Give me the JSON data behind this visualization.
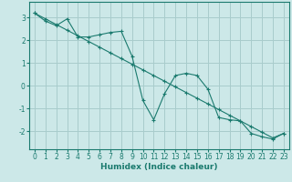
{
  "xlabel": "Humidex (Indice chaleur)",
  "bg_color": "#cce8e8",
  "line_color": "#1a7a6e",
  "grid_color": "#a8cccc",
  "line1_x": [
    0,
    1,
    2,
    3,
    4,
    5,
    6,
    7,
    8,
    9,
    10,
    11,
    12,
    13,
    14,
    15,
    16,
    17,
    18,
    19,
    20,
    21,
    22,
    23
  ],
  "line1_y": [
    3.2,
    2.85,
    2.65,
    2.95,
    2.15,
    2.15,
    2.25,
    2.35,
    2.4,
    1.3,
    -0.65,
    -1.5,
    -0.35,
    0.45,
    0.55,
    0.45,
    -0.15,
    -1.4,
    -1.5,
    -1.55,
    -2.1,
    -2.25,
    -2.35,
    -2.1
  ],
  "line2_x": [
    0,
    1,
    2,
    3,
    4,
    5,
    6,
    7,
    8,
    9,
    10,
    11,
    12,
    13,
    14,
    15,
    16,
    17,
    18,
    19,
    20,
    21,
    22,
    23
  ],
  "line2_y": [
    3.2,
    2.95,
    2.7,
    2.45,
    2.2,
    1.95,
    1.7,
    1.45,
    1.2,
    0.95,
    0.7,
    0.45,
    0.2,
    -0.05,
    -0.3,
    -0.55,
    -0.8,
    -1.05,
    -1.3,
    -1.55,
    -1.8,
    -2.05,
    -2.3,
    -2.1
  ],
  "ylim": [
    -2.8,
    3.7
  ],
  "xlim": [
    -0.5,
    23.5
  ],
  "yticks": [
    -2,
    -1,
    0,
    1,
    2,
    3
  ],
  "xticks": [
    0,
    1,
    2,
    3,
    4,
    5,
    6,
    7,
    8,
    9,
    10,
    11,
    12,
    13,
    14,
    15,
    16,
    17,
    18,
    19,
    20,
    21,
    22,
    23
  ],
  "tick_fontsize": 5.5,
  "xlabel_fontsize": 6.5
}
